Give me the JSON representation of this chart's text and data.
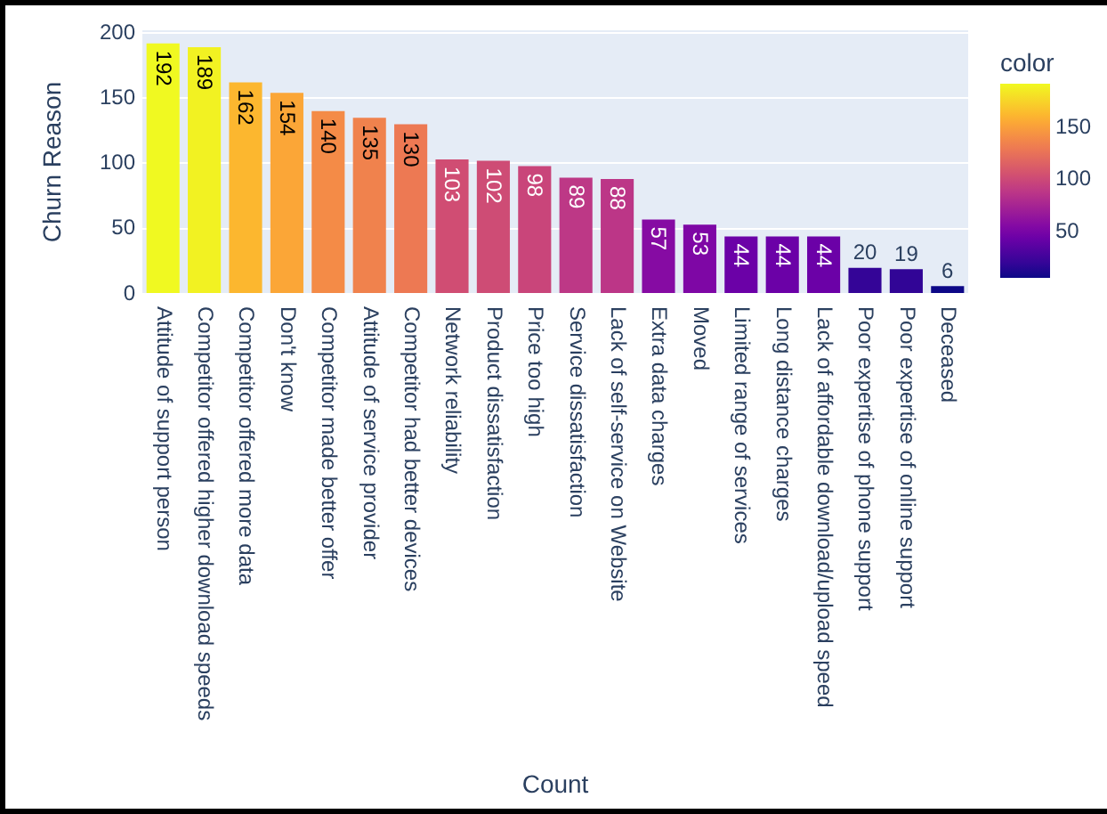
{
  "chart_data": {
    "type": "bar",
    "xlabel": "Count",
    "ylabel": "Churn Reason",
    "clabel": "color",
    "categories": [
      "Attitude of support person",
      "Competitor offered higher download speeds",
      "Competitor offered more data",
      "Don't know",
      "Competitor made better offer",
      "Attitude of service provider",
      "Competitor had better devices",
      "Network reliability",
      "Product dissatisfaction",
      "Price too high",
      "Service dissatisfaction",
      "Lack of self-service on Website",
      "Extra data charges",
      "Moved",
      "Limited range of services",
      "Long distance charges",
      "Lack of affordable download/upload speed",
      "Poor expertise of phone support",
      "Poor expertise of online support",
      "Deceased"
    ],
    "values": [
      192,
      189,
      162,
      154,
      140,
      135,
      130,
      103,
      102,
      98,
      89,
      88,
      57,
      53,
      44,
      44,
      44,
      20,
      19,
      6
    ],
    "colors": [
      "#f0f921",
      "#f2f222",
      "#fcb72f",
      "#fba637",
      "#f48b47",
      "#f0824d",
      "#ed7953",
      "#d04d73",
      "#ce4c75",
      "#c9457a",
      "#bd3886",
      "#bc3687",
      "#860ba3",
      "#7e07a5",
      "#6b01a7",
      "#6b01a7",
      "#6b01a7",
      "#340597",
      "#310596",
      "#0d0887"
    ],
    "ylim": [
      0,
      202
    ],
    "yticks": [
      0,
      50,
      100,
      150,
      200
    ],
    "grid": "y",
    "data_labels": true,
    "clim": [
      6,
      192
    ],
    "cticks": [
      50,
      100,
      150
    ]
  }
}
